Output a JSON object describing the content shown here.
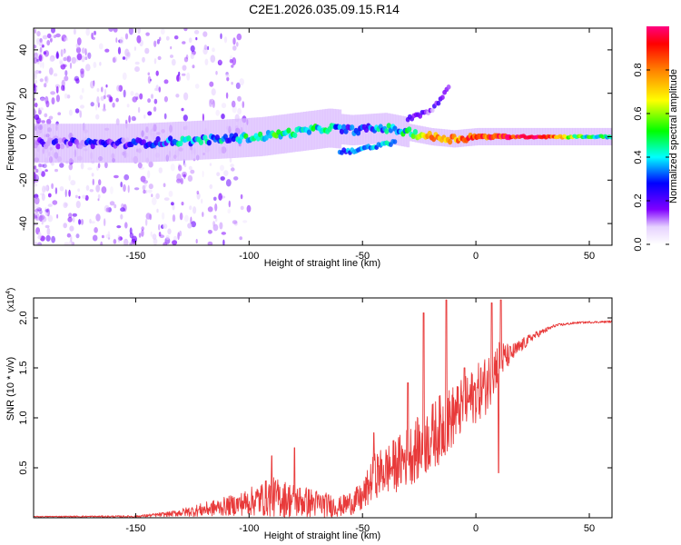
{
  "title": "C2E1.2026.035.09.15.R14",
  "colors": {
    "snr_line": "#e83a3a",
    "frame": "#000000",
    "spectrogram_purple": "#6a00ff",
    "spectrogram_red": "#ff1a1a"
  },
  "chart_data": [
    {
      "type": "heatmap",
      "title": "C2E1.2026.035.09.15.R14",
      "xlabel": "Height of straight line (km)",
      "ylabel": "Frequency (Hz)",
      "xlim": [
        -195,
        60
      ],
      "ylim": [
        -50,
        50
      ],
      "x_ticks": [
        -150,
        -100,
        -50,
        0,
        50
      ],
      "x_tick_labels": [
        "-150",
        "-100",
        "-50",
        "0",
        "50"
      ],
      "y_ticks": [
        -40,
        -20,
        0,
        20,
        40
      ],
      "y_tick_labels": [
        "-40",
        "-20",
        "0",
        "20",
        "40"
      ],
      "ridge_points": [
        {
          "x": -190,
          "y": -3,
          "a": 0.15
        },
        {
          "x": -170,
          "y": -3,
          "a": 0.2
        },
        {
          "x": -150,
          "y": -3,
          "a": 0.2
        },
        {
          "x": -130,
          "y": -2,
          "a": 0.35
        },
        {
          "x": -110,
          "y": -1,
          "a": 0.35
        },
        {
          "x": -95,
          "y": 0,
          "a": 0.45
        },
        {
          "x": -80,
          "y": 2,
          "a": 0.45
        },
        {
          "x": -65,
          "y": 4,
          "a": 0.4
        },
        {
          "x": -55,
          "y": 3,
          "a": 0.3
        },
        {
          "x": -40,
          "y": 4,
          "a": 0.35
        },
        {
          "x": -30,
          "y": 2,
          "a": 0.45
        },
        {
          "x": -20,
          "y": 0,
          "a": 0.8
        },
        {
          "x": -10,
          "y": -1,
          "a": 0.8
        },
        {
          "x": 0,
          "y": 0,
          "a": 0.85
        },
        {
          "x": 10,
          "y": 0,
          "a": 0.9
        },
        {
          "x": 20,
          "y": 0,
          "a": 0.95
        },
        {
          "x": 30,
          "y": 0,
          "a": 0.95
        },
        {
          "x": 40,
          "y": 0,
          "a": 0.6
        },
        {
          "x": 50,
          "y": 0,
          "a": 0.45
        },
        {
          "x": 60,
          "y": 0,
          "a": 0.45
        }
      ],
      "lower_branch": [
        {
          "x": -60,
          "y": -7,
          "a": 0.3
        },
        {
          "x": -45,
          "y": -5,
          "a": 0.35
        },
        {
          "x": -35,
          "y": -2,
          "a": 0.4
        }
      ],
      "upper_branch": [
        {
          "x": -30,
          "y": 8,
          "a": 0.2
        },
        {
          "x": -20,
          "y": 12,
          "a": 0.15
        },
        {
          "x": -12,
          "y": 22,
          "a": 0.15
        }
      ],
      "colorbar": {
        "label": "Normalized spectral amplitude",
        "range": [
          0,
          1
        ],
        "ticks": [
          0.0,
          0.2,
          0.4,
          0.6,
          0.8
        ],
        "tick_labels": [
          "0.0",
          "0.2",
          "0.4",
          "0.6",
          "0.8"
        ]
      }
    },
    {
      "type": "line",
      "xlabel": "Height of straight line (km)",
      "ylabel": "SNR (10 * v/v)",
      "y_multiplier": "(x10",
      "y_multiplier_exp": "4",
      "y_multiplier_close": ")",
      "xlim": [
        -195,
        60
      ],
      "ylim": [
        0,
        2.2
      ],
      "x_ticks": [
        -150,
        -100,
        -50,
        0,
        50
      ],
      "x_tick_labels": [
        "-150",
        "-100",
        "-50",
        "0",
        "50"
      ],
      "y_ticks": [
        0.5,
        1.0,
        1.5,
        2.0
      ],
      "y_tick_labels": [
        "0.5",
        "1.0",
        "1.5",
        "2.0"
      ],
      "envelope": [
        {
          "x": -195,
          "base": 0.01,
          "amp": 0.01
        },
        {
          "x": -150,
          "base": 0.01,
          "amp": 0.02
        },
        {
          "x": -135,
          "base": 0.03,
          "amp": 0.05
        },
        {
          "x": -120,
          "base": 0.06,
          "amp": 0.14
        },
        {
          "x": -105,
          "base": 0.1,
          "amp": 0.22
        },
        {
          "x": -90,
          "base": 0.15,
          "amp": 0.4
        },
        {
          "x": -80,
          "base": 0.12,
          "amp": 0.35
        },
        {
          "x": -70,
          "base": 0.1,
          "amp": 0.28
        },
        {
          "x": -60,
          "base": 0.08,
          "amp": 0.2
        },
        {
          "x": -50,
          "base": 0.15,
          "amp": 0.3
        },
        {
          "x": -45,
          "base": 0.35,
          "amp": 0.45
        },
        {
          "x": -35,
          "base": 0.45,
          "amp": 0.55
        },
        {
          "x": -25,
          "base": 0.6,
          "amp": 0.65
        },
        {
          "x": -15,
          "base": 0.8,
          "amp": 0.7
        },
        {
          "x": -5,
          "base": 1.05,
          "amp": 0.55
        },
        {
          "x": 5,
          "base": 1.25,
          "amp": 0.6
        },
        {
          "x": 10,
          "base": 1.5,
          "amp": 0.45
        },
        {
          "x": 15,
          "base": 1.6,
          "amp": 0.2
        },
        {
          "x": 25,
          "base": 1.8,
          "amp": 0.08
        },
        {
          "x": 35,
          "base": 1.92,
          "amp": 0.03
        },
        {
          "x": 45,
          "base": 1.95,
          "amp": 0.02
        },
        {
          "x": 60,
          "base": 1.96,
          "amp": 0.02
        }
      ],
      "spikes": [
        {
          "x": -90,
          "y": 0.62
        },
        {
          "x": -80,
          "y": 0.7
        },
        {
          "x": -45,
          "y": 0.85
        },
        {
          "x": -30,
          "y": 1.35
        },
        {
          "x": -23,
          "y": 2.05
        },
        {
          "x": -13,
          "y": 2.18
        },
        {
          "x": -5,
          "y": 1.5
        },
        {
          "x": 7,
          "y": 2.15
        },
        {
          "x": 11,
          "y": 2.18
        },
        {
          "x": 10,
          "y": 0.45
        }
      ]
    }
  ]
}
